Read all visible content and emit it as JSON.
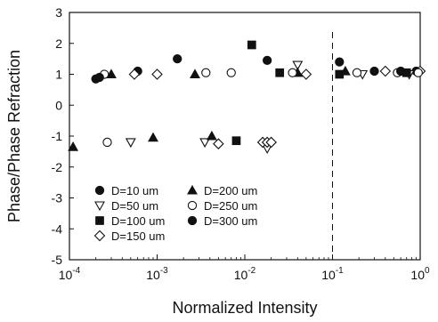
{
  "chart_data": {
    "type": "scatter",
    "title": "",
    "xlabel": "Normalized Intensity",
    "ylabel": "Phase/Phase Refraction",
    "xscale": "log",
    "xlim": [
      0.0001,
      1
    ],
    "ylim": [
      -5,
      3
    ],
    "grid": false,
    "x_ticks": [
      {
        "value": 0.0001,
        "base": "10",
        "exp": "-4"
      },
      {
        "value": 0.001,
        "base": "10",
        "exp": "-3"
      },
      {
        "value": 0.01,
        "base": "10",
        "exp": "-2"
      },
      {
        "value": 0.1,
        "base": "10",
        "exp": "-1"
      },
      {
        "value": 1,
        "base": "10",
        "exp": "0"
      }
    ],
    "y_ticks": [
      "-5",
      "-4",
      "-3",
      "-2",
      "-1",
      "0",
      "1",
      "2",
      "3"
    ],
    "reference_line": {
      "x": 0.1,
      "style": "dashed"
    },
    "legend_position": "lower-left",
    "series": [
      {
        "name": "D=10 um",
        "marker": "filled-circle",
        "points": [
          [
            0.0002,
            0.85
          ],
          [
            0.0006,
            1.1
          ],
          [
            0.0017,
            1.5
          ],
          [
            0.018,
            1.45
          ],
          [
            0.3,
            1.1
          ],
          [
            0.9,
            1.1
          ]
        ]
      },
      {
        "name": "D=50 um",
        "marker": "open-triangle-down",
        "points": [
          [
            0.0005,
            -1.2
          ],
          [
            0.0035,
            -1.2
          ],
          [
            0.018,
            -1.4
          ],
          [
            0.04,
            1.3
          ],
          [
            0.22,
            1.0
          ],
          [
            0.75,
            1.0
          ]
        ]
      },
      {
        "name": "D=100 um",
        "marker": "filled-square",
        "points": [
          [
            0.008,
            -1.15
          ],
          [
            0.012,
            1.95
          ],
          [
            0.025,
            1.05
          ],
          [
            0.12,
            1.0
          ],
          [
            0.7,
            1.05
          ]
        ]
      },
      {
        "name": "D=150 um",
        "marker": "open-diamond",
        "points": [
          [
            0.00055,
            1.0
          ],
          [
            0.001,
            1.0
          ],
          [
            0.005,
            -1.25
          ],
          [
            0.016,
            -1.2
          ],
          [
            0.018,
            -1.2
          ],
          [
            0.02,
            -1.2
          ],
          [
            0.05,
            1.0
          ],
          [
            0.4,
            1.1
          ],
          [
            1.0,
            1.1
          ]
        ]
      },
      {
        "name": "D=200 um",
        "marker": "filled-triangle-up",
        "points": [
          [
            0.00011,
            -1.35
          ],
          [
            0.0003,
            1.0
          ],
          [
            0.0009,
            -1.05
          ],
          [
            0.0027,
            1.0
          ],
          [
            0.0042,
            -1.0
          ],
          [
            0.04,
            1.05
          ],
          [
            0.14,
            1.1
          ]
        ]
      },
      {
        "name": "D=250 um",
        "marker": "open-circle",
        "points": [
          [
            0.00025,
            1.0
          ],
          [
            0.00027,
            -1.2
          ],
          [
            0.0036,
            1.05
          ],
          [
            0.007,
            1.05
          ],
          [
            0.035,
            1.05
          ],
          [
            0.19,
            1.05
          ],
          [
            0.55,
            1.05
          ],
          [
            0.95,
            1.05
          ]
        ]
      },
      {
        "name": "D=300 um",
        "marker": "filled-circle",
        "points": [
          [
            0.00022,
            0.9
          ],
          [
            0.12,
            1.4
          ],
          [
            0.6,
            1.1
          ]
        ]
      }
    ]
  }
}
